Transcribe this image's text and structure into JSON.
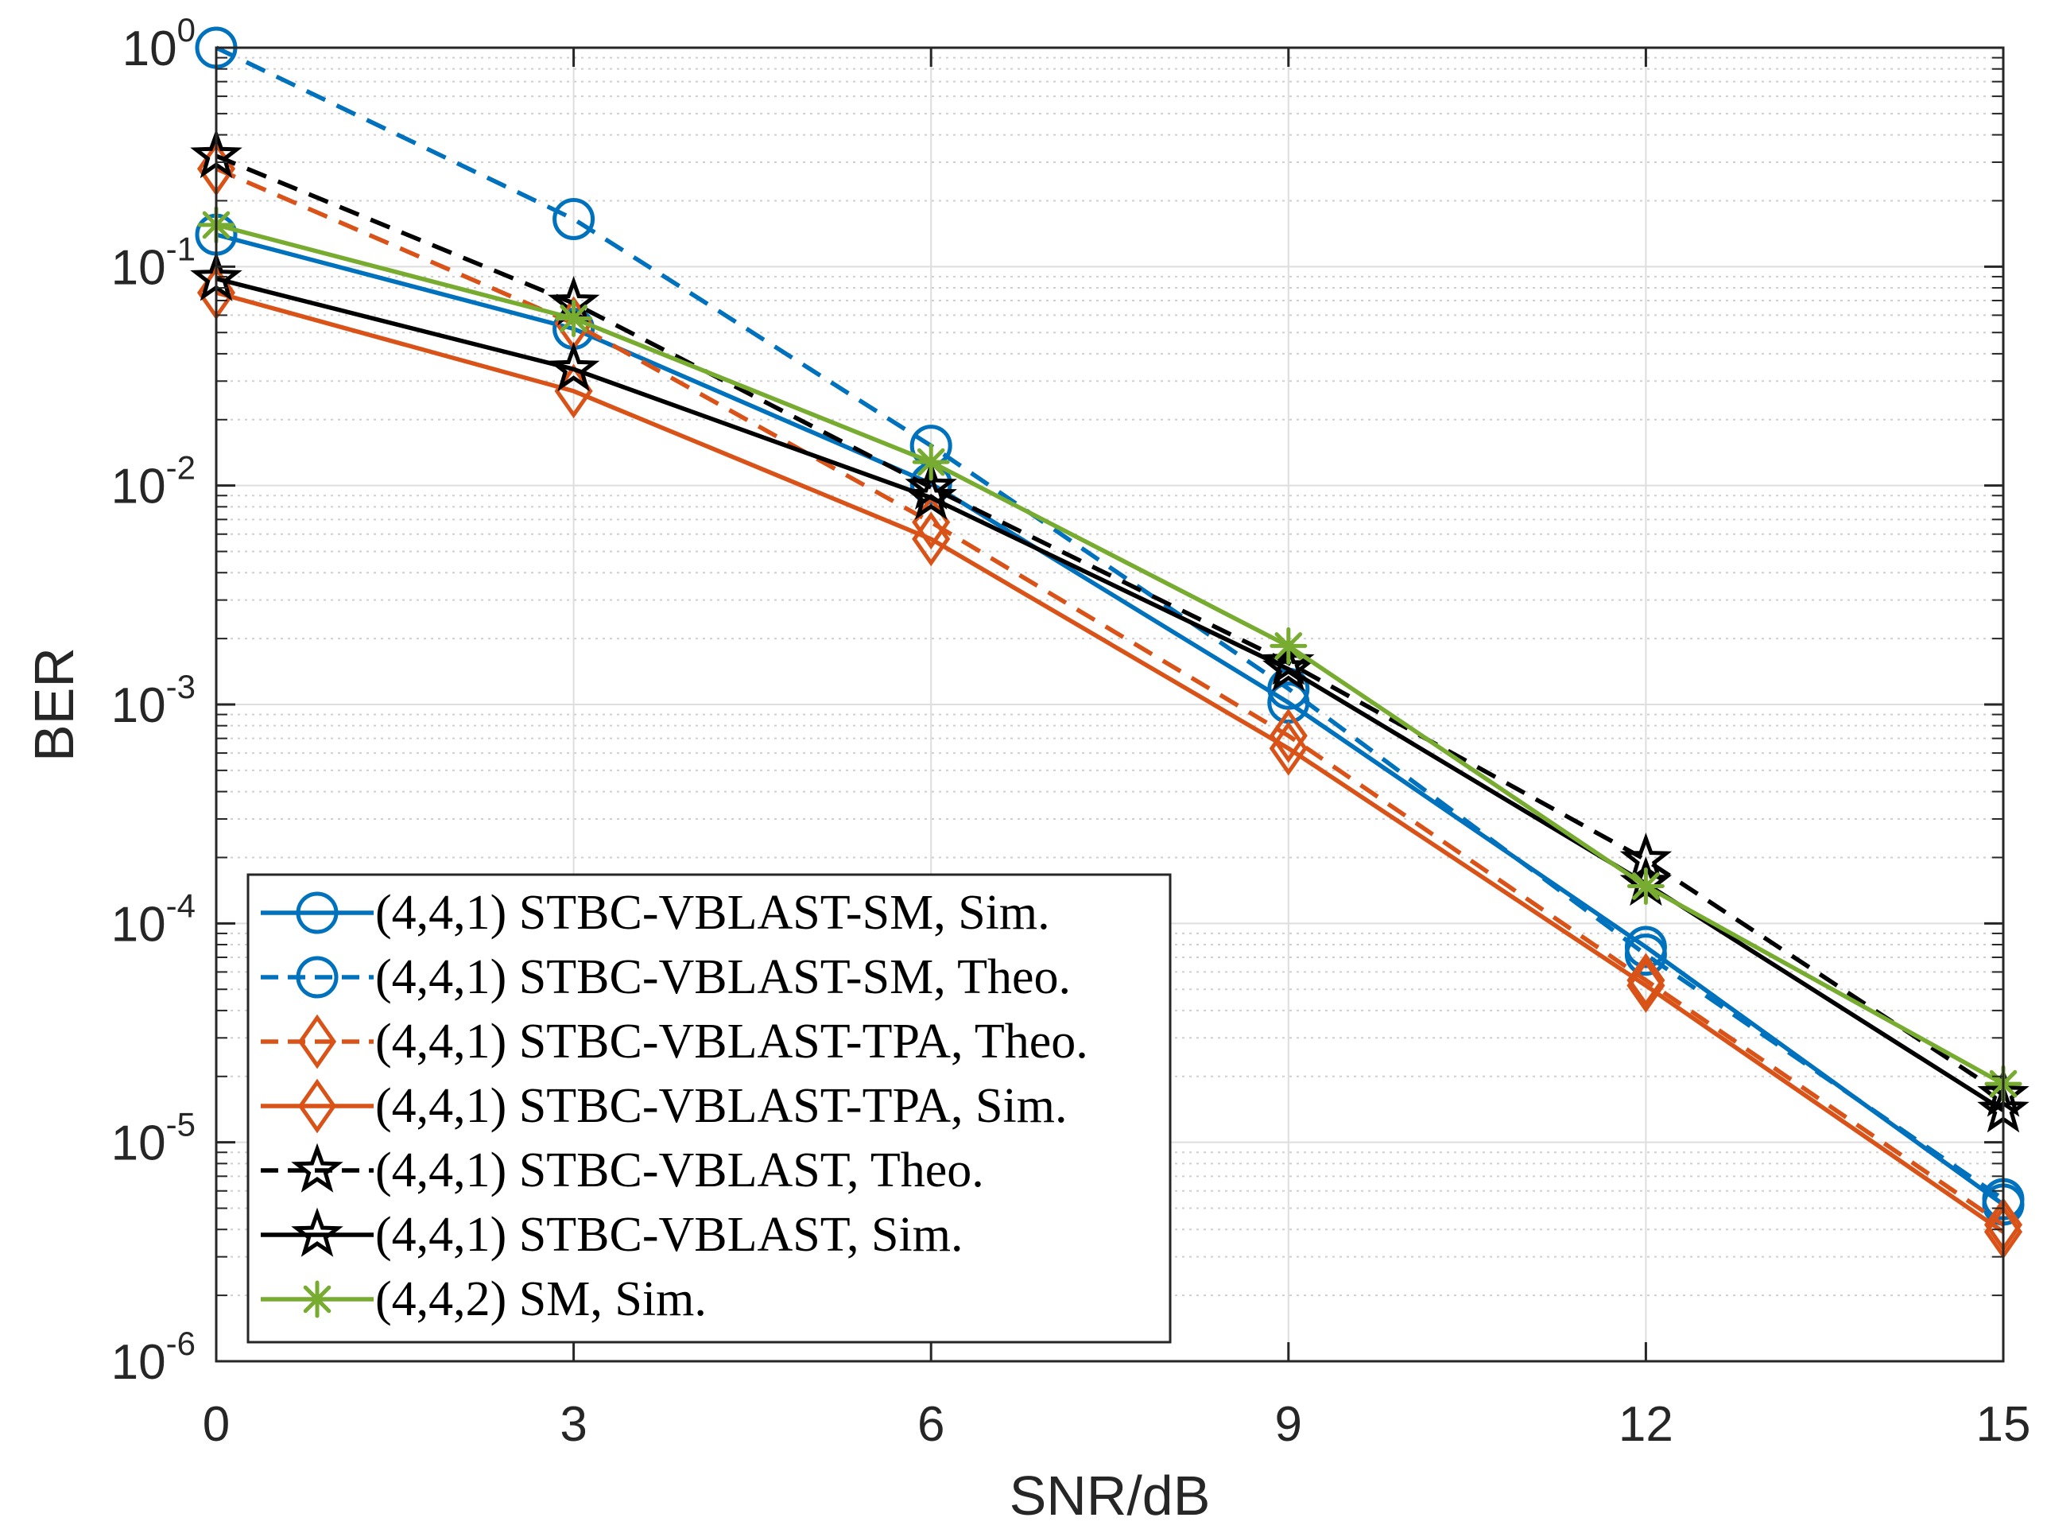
{
  "chart_data": {
    "type": "line",
    "title": "",
    "xlabel": "SNR/dB",
    "ylabel": "BER",
    "yscale": "log",
    "x": [
      0,
      3,
      6,
      9,
      12,
      15
    ],
    "xlim": [
      0,
      15
    ],
    "ylim": [
      1e-06,
      1
    ],
    "xticks": [
      "0",
      "3",
      "6",
      "9",
      "12",
      "15"
    ],
    "yticks": [
      {
        "value": 1,
        "base": "10",
        "exp": "0"
      },
      {
        "value": 0.1,
        "base": "10",
        "exp": "-1"
      },
      {
        "value": 0.01,
        "base": "10",
        "exp": "-2"
      },
      {
        "value": 0.001,
        "base": "10",
        "exp": "-3"
      },
      {
        "value": 0.0001,
        "base": "10",
        "exp": "-4"
      },
      {
        "value": 1e-05,
        "base": "10",
        "exp": "-5"
      },
      {
        "value": 1e-06,
        "base": "10",
        "exp": "-6"
      }
    ],
    "grid": true,
    "legend_position": "bottom-left",
    "series": [
      {
        "name": "(4,4,1) STBC-VBLAST-SM, Sim.",
        "color": "#0072BD",
        "dash": "solid",
        "marker": "circle",
        "values": [
          0.14,
          0.052,
          0.0102,
          0.00102,
          7.8e-05,
          5.2e-06
        ]
      },
      {
        "name": "(4,4,1) STBC-VBLAST-SM, Theo.",
        "color": "#0072BD",
        "dash": "dashed",
        "marker": "circle",
        "values": [
          1.0,
          0.165,
          0.0152,
          0.00118,
          7.2e-05,
          5.5e-06
        ]
      },
      {
        "name": "(4,4,1) STBC-VBLAST-TPA, Theo.",
        "color": "#D95319",
        "dash": "dashed",
        "marker": "diamond",
        "values": [
          0.28,
          0.055,
          0.0068,
          0.00072,
          5.5e-05,
          4.2e-06
        ]
      },
      {
        "name": "(4,4,1) STBC-VBLAST-TPA, Sim.",
        "color": "#D95319",
        "dash": "solid",
        "marker": "diamond",
        "values": [
          0.076,
          0.027,
          0.0057,
          0.00063,
          5.2e-05,
          3.9e-06
        ]
      },
      {
        "name": "(4,4,1) STBC-VBLAST, Theo.",
        "color": "#000000",
        "dash": "dashed",
        "marker": "star",
        "values": [
          0.32,
          0.068,
          0.0098,
          0.00155,
          0.000195,
          1.65e-05
        ]
      },
      {
        "name": "(4,4,1) STBC-VBLAST, Sim.",
        "color": "#000000",
        "dash": "solid",
        "marker": "star",
        "values": [
          0.088,
          0.034,
          0.0088,
          0.00145,
          0.000152,
          1.4e-05
        ]
      },
      {
        "name": "(4,4,2) SM, Sim.",
        "color": "#77AC30",
        "dash": "solid",
        "marker": "asterisk",
        "values": [
          0.155,
          0.058,
          0.0128,
          0.00185,
          0.000148,
          1.85e-05
        ]
      }
    ]
  }
}
